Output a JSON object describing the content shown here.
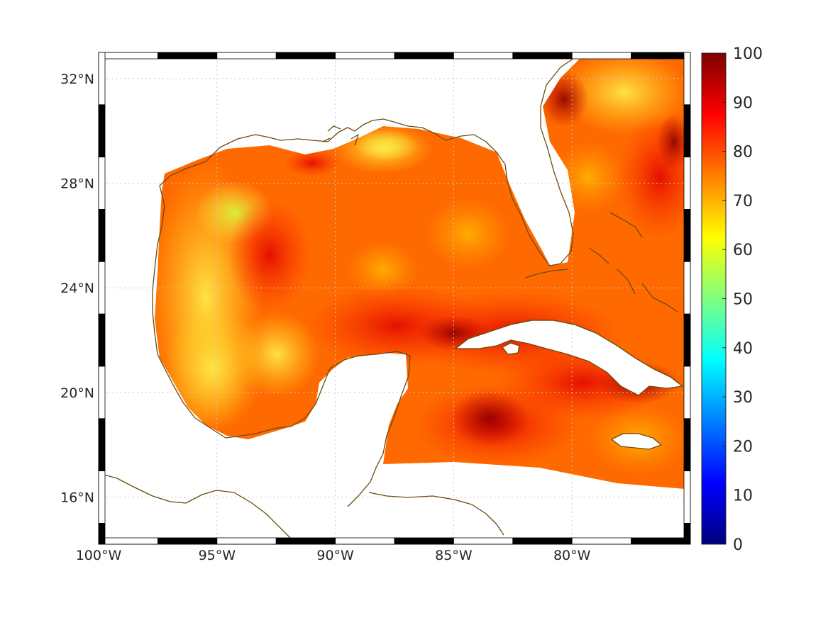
{
  "map": {
    "projection": "equirectangular",
    "lon_range": [
      -100,
      -75
    ],
    "lat_range": [
      14.2,
      33
    ]
  },
  "axes": {
    "x_ticks": [
      {
        "value": -100,
        "label": "100°W"
      },
      {
        "value": -95,
        "label": "95°W"
      },
      {
        "value": -90,
        "label": "90°W"
      },
      {
        "value": -85,
        "label": "85°W"
      },
      {
        "value": -80,
        "label": "80°W"
      }
    ],
    "y_ticks": [
      {
        "value": 32,
        "label": "32°N"
      },
      {
        "value": 28,
        "label": "28°N"
      },
      {
        "value": 24,
        "label": "24°N"
      },
      {
        "value": 20,
        "label": "20°N"
      },
      {
        "value": 16,
        "label": "16°N"
      }
    ],
    "grid": true
  },
  "colorbar": {
    "colormap": "jet",
    "range": [
      0,
      100
    ],
    "ticks": [
      "0",
      "10",
      "20",
      "30",
      "40",
      "50",
      "60",
      "70",
      "80",
      "90",
      "100"
    ],
    "colors": [
      "#00007f",
      "#0000ff",
      "#007fff",
      "#00ffff",
      "#7fff7f",
      "#ffff00",
      "#ff7f00",
      "#ff0000",
      "#7f0000"
    ]
  },
  "colors": {
    "coastline": "#6b4a0e",
    "field_dominant": "#ff6a00",
    "field_high": "#b80000",
    "field_low": "#ffd21a"
  }
}
